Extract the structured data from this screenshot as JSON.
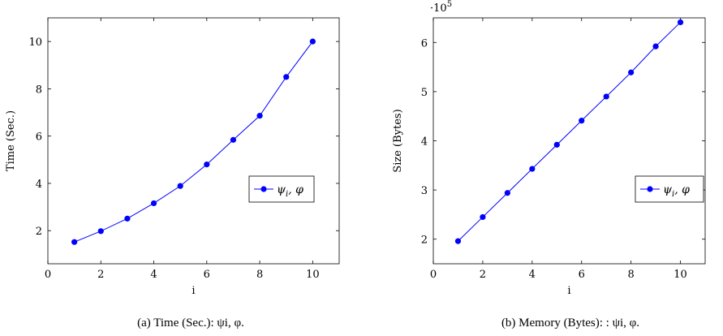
{
  "chart_data": [
    {
      "type": "line",
      "x": [
        1,
        2,
        3,
        4,
        5,
        6,
        7,
        8,
        9,
        10
      ],
      "series": [
        {
          "name": "ψ_i, φ",
          "values": [
            1.52,
            1.98,
            2.51,
            3.16,
            3.89,
            4.8,
            5.84,
            6.86,
            8.5,
            10.0
          ],
          "color": "#0000ff"
        }
      ],
      "xlabel": "i",
      "ylabel": "Time (Sec.)",
      "xlim": [
        0,
        11
      ],
      "ylim": [
        0.6,
        11.0
      ],
      "xticks": [
        0,
        2,
        4,
        6,
        8,
        10
      ],
      "yticks": [
        2,
        4,
        6,
        8,
        10
      ],
      "legend_placement": "right",
      "grid": false,
      "caption": "(a) Time (Sec.): ψi, φ."
    },
    {
      "type": "line",
      "x": [
        1,
        2,
        3,
        4,
        5,
        6,
        7,
        8,
        9,
        10
      ],
      "series": [
        {
          "name": "ψ_i, φ",
          "values": [
            1.96,
            2.45,
            2.94,
            3.43,
            3.92,
            4.41,
            4.9,
            5.39,
            5.92,
            6.41
          ],
          "color": "#0000ff"
        }
      ],
      "xlabel": "i",
      "ylabel": "Size (Bytes)",
      "scale_label": "·10^5",
      "xlim": [
        0,
        11
      ],
      "ylim": [
        1.5,
        6.5
      ],
      "xticks": [
        0,
        2,
        4,
        6,
        8,
        10
      ],
      "yticks": [
        2,
        3,
        4,
        5,
        6
      ],
      "legend_placement": "right",
      "grid": false,
      "caption": "(b) Memory (Bytes): : ψi, φ."
    }
  ]
}
